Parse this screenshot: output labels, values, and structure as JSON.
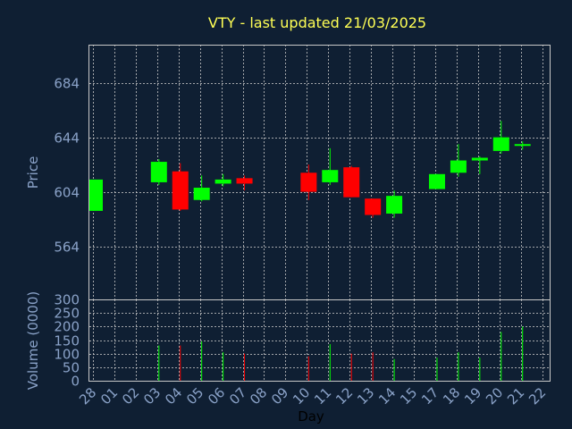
{
  "colors": {
    "up": "#00ff00",
    "down": "#ff0000",
    "background": "#0f1f33",
    "text": "#8aa2c8",
    "title": "#ffff55",
    "grid": "#c8c8c8"
  },
  "chart_data": {
    "type": "candlestick",
    "title": "VTY - last updated 21/03/2025",
    "xlabel": "Day",
    "grid": true,
    "price_panel": {
      "ylabel": "Price",
      "ylim": [
        525,
        712
      ],
      "yticks": [
        564,
        604,
        644,
        684
      ]
    },
    "volume_panel": {
      "ylabel": "Volume (0000)",
      "ylim": [
        0,
        300
      ],
      "yticks": [
        0,
        50,
        100,
        150,
        200,
        250,
        300
      ]
    },
    "x_tick_labels": [
      "28",
      "01",
      "02",
      "03",
      "04",
      "05",
      "06",
      "07",
      "08",
      "09",
      "10",
      "11",
      "12",
      "13",
      "14",
      "15",
      "17",
      "18",
      "19",
      "20",
      "21",
      "22"
    ],
    "candles": [
      {
        "day": "28",
        "open": 590,
        "close": 613,
        "high": 613,
        "low": 590,
        "volume": 0
      },
      {
        "day": "03",
        "open": 611,
        "close": 626,
        "high": 628,
        "low": 609,
        "volume": 130
      },
      {
        "day": "04",
        "open": 619,
        "close": 591,
        "high": 625,
        "low": 590,
        "volume": 130
      },
      {
        "day": "05",
        "open": 598,
        "close": 607,
        "high": 616,
        "low": 597,
        "volume": 145
      },
      {
        "day": "06",
        "open": 610,
        "close": 613,
        "high": 617,
        "low": 608,
        "volume": 105
      },
      {
        "day": "07",
        "open": 614,
        "close": 610,
        "high": 616,
        "low": 605,
        "volume": 100
      },
      {
        "day": "10",
        "open": 618,
        "close": 604,
        "high": 624,
        "low": 598,
        "volume": 90
      },
      {
        "day": "11",
        "open": 611,
        "close": 620,
        "high": 636,
        "low": 609,
        "volume": 135
      },
      {
        "day": "12",
        "open": 622,
        "close": 600,
        "high": 623,
        "low": 600,
        "volume": 100
      },
      {
        "day": "13",
        "open": 599,
        "close": 587,
        "high": 599,
        "low": 585,
        "volume": 105
      },
      {
        "day": "14",
        "open": 588,
        "close": 601,
        "high": 605,
        "low": 585,
        "volume": 80
      },
      {
        "day": "17",
        "open": 606,
        "close": 617,
        "high": 617,
        "low": 606,
        "volume": 85
      },
      {
        "day": "18",
        "open": 618,
        "close": 627,
        "high": 639,
        "low": 615,
        "volume": 105
      },
      {
        "day": "19",
        "open": 627,
        "close": 629,
        "high": 630,
        "low": 617,
        "volume": 85
      },
      {
        "day": "20",
        "open": 634,
        "close": 644,
        "high": 656,
        "low": 632,
        "volume": 180
      },
      {
        "day": "21",
        "open": 638,
        "close": 639,
        "high": 641,
        "low": 635,
        "volume": 200
      }
    ]
  }
}
